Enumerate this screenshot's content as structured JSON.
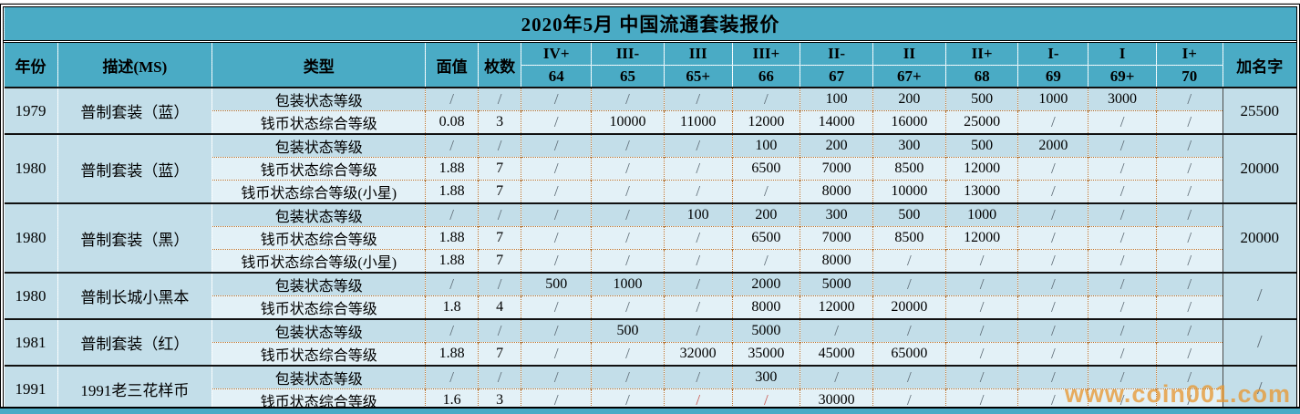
{
  "title": "2020年5月  中国流通套装报价",
  "watermark": "www.coin001.com",
  "columns": {
    "year": "年份",
    "desc": "描述(MS)",
    "type": "类型",
    "face_value": "面值",
    "count": "枚数",
    "add_name": "加名字"
  },
  "grade_columns": [
    {
      "roman": "IV+",
      "num": "64"
    },
    {
      "roman": "III-",
      "num": "65"
    },
    {
      "roman": "III",
      "num": "65+"
    },
    {
      "roman": "III+",
      "num": "66"
    },
    {
      "roman": "II-",
      "num": "67"
    },
    {
      "roman": "II",
      "num": "67+"
    },
    {
      "roman": "II+",
      "num": "68"
    },
    {
      "roman": "I-",
      "num": "69"
    },
    {
      "roman": "I",
      "num": "69+"
    },
    {
      "roman": "I+",
      "num": "70"
    }
  ],
  "groups": [
    {
      "year": "1979",
      "desc": "普制套装（蓝）",
      "add_name": "25500",
      "rows": [
        {
          "type": "包装状态等级",
          "face_value": "/",
          "count": "/",
          "grades": [
            "/",
            "/",
            "/",
            "/",
            "100",
            "200",
            "500",
            "1000",
            "3000",
            "/"
          ]
        },
        {
          "type": "钱币状态综合等级",
          "face_value": "0.08",
          "count": "3",
          "grades": [
            "/",
            "10000",
            "11000",
            "12000",
            "14000",
            "16000",
            "25000",
            "/",
            "/",
            "/"
          ]
        }
      ]
    },
    {
      "year": "1980",
      "desc": "普制套装（蓝）",
      "add_name": "20000",
      "rows": [
        {
          "type": "包装状态等级",
          "face_value": "/",
          "count": "/",
          "grades": [
            "/",
            "/",
            "/",
            "100",
            "200",
            "300",
            "500",
            "2000",
            "/",
            "/"
          ]
        },
        {
          "type": "钱币状态综合等级",
          "face_value": "1.88",
          "count": "7",
          "grades": [
            "/",
            "/",
            "/",
            "6500",
            "7000",
            "8500",
            "12000",
            "/",
            "/",
            "/"
          ]
        },
        {
          "type": "钱币状态综合等级(小星)",
          "face_value": "1.88",
          "count": "7",
          "grades": [
            "/",
            "/",
            "/",
            "/",
            "8000",
            "10000",
            "13000",
            "/",
            "/",
            "/"
          ]
        }
      ]
    },
    {
      "year": "1980",
      "desc": "普制套装（黑）",
      "add_name": "20000",
      "rows": [
        {
          "type": "包装状态等级",
          "face_value": "/",
          "count": "/",
          "grades": [
            "/",
            "/",
            "100",
            "200",
            "300",
            "500",
            "1000",
            "/",
            "/",
            "/"
          ]
        },
        {
          "type": "钱币状态综合等级",
          "face_value": "1.88",
          "count": "7",
          "grades": [
            "/",
            "/",
            "/",
            "6500",
            "7000",
            "8500",
            "12000",
            "/",
            "/",
            "/"
          ]
        },
        {
          "type": "钱币状态综合等级(小星)",
          "face_value": "1.88",
          "count": "7",
          "grades": [
            "/",
            "/",
            "/",
            "/",
            "8000",
            "/",
            "/",
            "/",
            "/",
            "/"
          ]
        }
      ]
    },
    {
      "year": "1980",
      "desc": "普制长城小黑本",
      "add_name": "/",
      "rows": [
        {
          "type": "包装状态等级",
          "face_value": "/",
          "count": "/",
          "grades": [
            "500",
            "1000",
            "/",
            "2000",
            "5000",
            "/",
            "/",
            "/",
            "/",
            "/"
          ]
        },
        {
          "type": "钱币状态综合等级",
          "face_value": "1.8",
          "count": "4",
          "grades": [
            "/",
            "/",
            "/",
            "8000",
            "12000",
            "20000",
            "/",
            "/",
            "/",
            "/"
          ]
        }
      ]
    },
    {
      "year": "1981",
      "desc": "普制套装（红）",
      "add_name": "/",
      "rows": [
        {
          "type": "包装状态等级",
          "face_value": "/",
          "count": "/",
          "grades": [
            "/",
            "500",
            "/",
            "5000",
            "/",
            "/",
            "/",
            "/",
            "/",
            "/"
          ]
        },
        {
          "type": "钱币状态综合等级",
          "face_value": "1.88",
          "count": "7",
          "grades": [
            "/",
            "/",
            "32000",
            "35000",
            "45000",
            "65000",
            "/",
            "/",
            "/",
            "/"
          ]
        }
      ]
    },
    {
      "year": "1991",
      "desc": "1991老三花样币",
      "add_name": "/",
      "rows": [
        {
          "type": "包装状态等级",
          "face_value": "/",
          "count": "/",
          "grades": [
            "/",
            "/",
            "/",
            "300",
            "/",
            "/",
            "/",
            "/",
            "/",
            "/"
          ]
        },
        {
          "type": "钱币状态综合等级",
          "face_value": "1.6",
          "count": "3",
          "grades": [
            "/",
            "/",
            {
              "value": "/",
              "red": true
            },
            {
              "value": "/",
              "red": true
            },
            "30000",
            "/",
            "/",
            "/",
            "/",
            "/"
          ]
        }
      ]
    }
  ],
  "colors": {
    "header_bg": "#4aabc5",
    "row_dark_bg": "#c3dee9",
    "row_light_bg": "#e3f1f7",
    "merged_cell_bg": "#c0dbe8",
    "dotted_border": "#b5702d",
    "red_slash": "#cc5a52",
    "watermark_orange": "#e79834",
    "bottom_strip": "#4aabc6"
  }
}
